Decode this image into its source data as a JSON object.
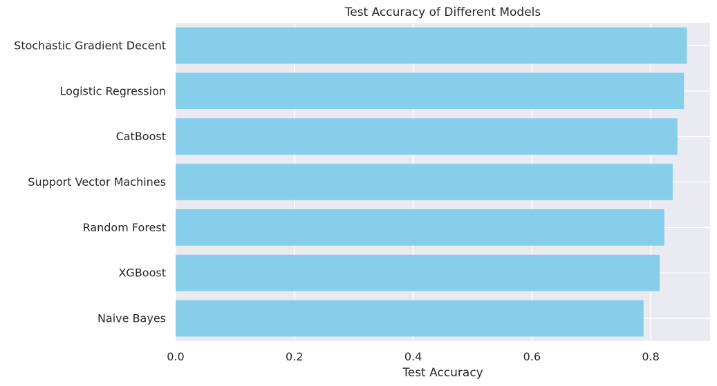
{
  "chart_data": {
    "type": "bar",
    "orientation": "horizontal",
    "title": "Test Accuracy of Different Models",
    "xlabel": "Test Accuracy",
    "ylabel": "",
    "categories": [
      "Naive Bayes",
      "XGBoost",
      "Random Forest",
      "Support Vector Machines",
      "CatBoost",
      "Logistic Regression",
      "Stochastic Gradient Decent"
    ],
    "values": [
      0.788,
      0.815,
      0.823,
      0.837,
      0.845,
      0.856,
      0.861
    ],
    "xlim": [
      0,
      0.9
    ],
    "xticks": [
      0.0,
      0.2,
      0.4,
      0.6,
      0.8
    ],
    "xtick_labels": [
      "0.0",
      "0.2",
      "0.4",
      "0.6",
      "0.8"
    ],
    "grid": true,
    "colors": {
      "bar": "#87ceeb",
      "plot_background": "#eaeaf2",
      "grid": "#ffffff",
      "text": "#262626"
    }
  }
}
